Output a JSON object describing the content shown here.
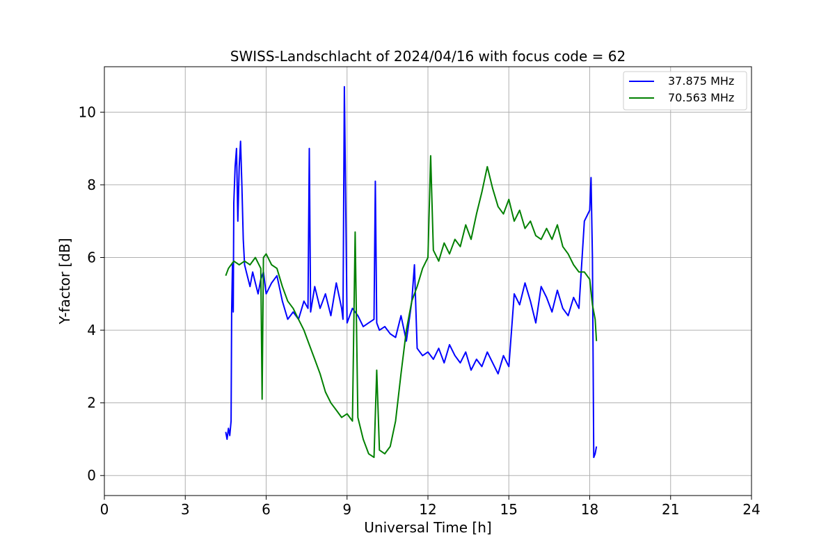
{
  "chart_data": {
    "type": "line",
    "title": "SWISS-Landschlacht of 2024/04/16 with focus code = 62",
    "xlabel": "Universal Time [h]",
    "ylabel": "Y-factor [dB]",
    "xlim": [
      0,
      24
    ],
    "ylim": [
      -0.55,
      11.25
    ],
    "xticks": [
      0,
      3,
      6,
      9,
      12,
      15,
      18,
      21,
      24
    ],
    "yticks": [
      0,
      2,
      4,
      6,
      8,
      10
    ],
    "grid": true,
    "legend_position": "top-right",
    "series": [
      {
        "name": "37.875 MHz",
        "color": "#0000ff",
        "x": [
          4.5,
          4.55,
          4.6,
          4.65,
          4.7,
          4.72,
          4.75,
          4.78,
          4.8,
          4.85,
          4.9,
          4.95,
          5.0,
          5.05,
          5.1,
          5.15,
          5.2,
          5.3,
          5.4,
          5.5,
          5.6,
          5.7,
          5.8,
          5.9,
          6.0,
          6.2,
          6.4,
          6.6,
          6.8,
          7.0,
          7.2,
          7.4,
          7.55,
          7.6,
          7.65,
          7.8,
          8.0,
          8.2,
          8.4,
          8.6,
          8.8,
          8.85,
          8.9,
          9.0,
          9.2,
          9.4,
          9.6,
          9.8,
          10.0,
          10.05,
          10.1,
          10.2,
          10.4,
          10.6,
          10.8,
          11.0,
          11.2,
          11.4,
          11.5,
          11.6,
          11.8,
          12.0,
          12.2,
          12.4,
          12.6,
          12.8,
          13.0,
          13.2,
          13.4,
          13.6,
          13.8,
          14.0,
          14.2,
          14.4,
          14.6,
          14.8,
          15.0,
          15.2,
          15.4,
          15.6,
          15.8,
          16.0,
          16.2,
          16.4,
          16.6,
          16.8,
          17.0,
          17.2,
          17.4,
          17.6,
          17.8,
          18.0,
          18.05,
          18.1,
          18.15,
          18.2,
          18.25
        ],
        "y": [
          1.2,
          1.0,
          1.3,
          1.1,
          1.5,
          4.5,
          5.8,
          4.5,
          7.5,
          8.5,
          9.0,
          7.0,
          8.5,
          9.2,
          8.0,
          6.5,
          5.8,
          5.5,
          5.2,
          5.6,
          5.3,
          5.0,
          5.4,
          5.6,
          5.0,
          5.3,
          5.5,
          4.8,
          4.3,
          4.5,
          4.3,
          4.8,
          4.6,
          9.0,
          4.5,
          5.2,
          4.6,
          5.0,
          4.4,
          5.3,
          4.6,
          4.3,
          10.7,
          4.2,
          4.6,
          4.4,
          4.1,
          4.2,
          4.3,
          8.1,
          4.2,
          4.0,
          4.1,
          3.9,
          3.8,
          4.4,
          3.7,
          4.8,
          5.8,
          3.5,
          3.3,
          3.4,
          3.2,
          3.5,
          3.1,
          3.6,
          3.3,
          3.1,
          3.4,
          2.9,
          3.2,
          3.0,
          3.4,
          3.1,
          2.8,
          3.3,
          3.0,
          5.0,
          4.7,
          5.3,
          4.8,
          4.2,
          5.2,
          4.9,
          4.5,
          5.1,
          4.6,
          4.4,
          4.9,
          4.6,
          7.0,
          7.3,
          8.2,
          6.0,
          0.5,
          0.6,
          0.8
        ],
        "note": null
      },
      {
        "name": "70.563 MHz",
        "color": "#008000",
        "x": [
          4.5,
          4.6,
          4.8,
          5.0,
          5.2,
          5.4,
          5.6,
          5.8,
          5.85,
          5.9,
          6.0,
          6.2,
          6.4,
          6.6,
          6.8,
          7.0,
          7.2,
          7.4,
          7.6,
          7.8,
          8.0,
          8.2,
          8.4,
          8.6,
          8.8,
          9.0,
          9.2,
          9.3,
          9.4,
          9.6,
          9.8,
          10.0,
          10.1,
          10.2,
          10.4,
          10.6,
          10.8,
          11.0,
          11.2,
          11.4,
          11.6,
          11.8,
          12.0,
          12.1,
          12.2,
          12.4,
          12.6,
          12.8,
          13.0,
          13.2,
          13.4,
          13.6,
          13.8,
          14.0,
          14.2,
          14.4,
          14.6,
          14.8,
          15.0,
          15.2,
          15.4,
          15.6,
          15.8,
          16.0,
          16.2,
          16.4,
          16.6,
          16.8,
          17.0,
          17.2,
          17.4,
          17.6,
          17.8,
          18.0,
          18.1,
          18.2,
          18.25
        ],
        "y": [
          5.5,
          5.7,
          5.9,
          5.8,
          5.9,
          5.8,
          6.0,
          5.7,
          2.1,
          6.0,
          6.1,
          5.8,
          5.7,
          5.2,
          4.8,
          4.6,
          4.3,
          4.0,
          3.6,
          3.2,
          2.8,
          2.3,
          2.0,
          1.8,
          1.6,
          1.7,
          1.5,
          6.7,
          1.6,
          1.0,
          0.6,
          0.5,
          2.9,
          0.7,
          0.6,
          0.8,
          1.5,
          2.8,
          4.0,
          4.8,
          5.2,
          5.7,
          6.0,
          8.8,
          6.2,
          5.9,
          6.4,
          6.1,
          6.5,
          6.3,
          6.9,
          6.5,
          7.2,
          7.8,
          8.5,
          7.9,
          7.4,
          7.2,
          7.6,
          7.0,
          7.3,
          6.8,
          7.0,
          6.6,
          6.5,
          6.8,
          6.5,
          6.9,
          6.3,
          6.1,
          5.8,
          5.6,
          5.6,
          5.4,
          4.7,
          4.3,
          3.7
        ],
        "note": null
      }
    ]
  }
}
